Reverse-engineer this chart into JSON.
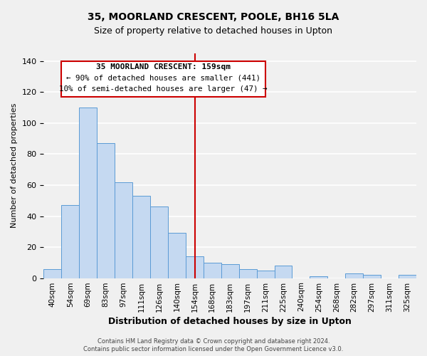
{
  "title": "35, MOORLAND CRESCENT, POOLE, BH16 5LA",
  "subtitle": "Size of property relative to detached houses in Upton",
  "xlabel": "Distribution of detached houses by size in Upton",
  "ylabel": "Number of detached properties",
  "bar_labels": [
    "40sqm",
    "54sqm",
    "69sqm",
    "83sqm",
    "97sqm",
    "111sqm",
    "126sqm",
    "140sqm",
    "154sqm",
    "168sqm",
    "183sqm",
    "197sqm",
    "211sqm",
    "225sqm",
    "240sqm",
    "254sqm",
    "268sqm",
    "282sqm",
    "297sqm",
    "311sqm",
    "325sqm"
  ],
  "bar_heights": [
    6,
    47,
    110,
    87,
    62,
    53,
    46,
    29,
    14,
    10,
    9,
    6,
    5,
    8,
    0,
    1,
    0,
    3,
    2,
    0,
    2
  ],
  "bar_color": "#c5d9f1",
  "bar_edge_color": "#5b9bd5",
  "vline_x": 8.535,
  "annotation_title": "35 MOORLAND CRESCENT: 159sqm",
  "annotation_line1": "← 90% of detached houses are smaller (441)",
  "annotation_line2": "10% of semi-detached houses are larger (47) →",
  "vline_color": "#cc0000",
  "annotation_box_edge": "#cc0000",
  "ylim": [
    0,
    145
  ],
  "footer1": "Contains HM Land Registry data © Crown copyright and database right 2024.",
  "footer2": "Contains public sector information licensed under the Open Government Licence v3.0.",
  "background_color": "#f0f0f0"
}
